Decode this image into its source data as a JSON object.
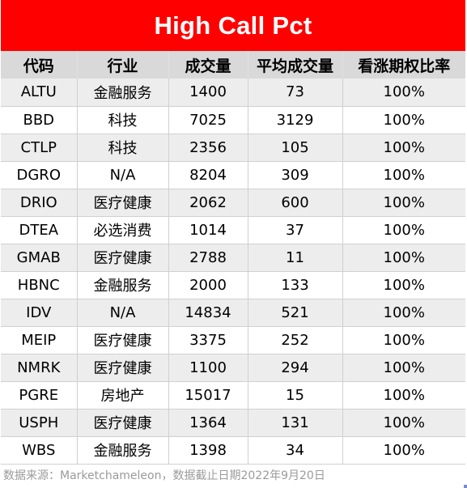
{
  "title": "High Call Pct",
  "headers": [
    "代码",
    "行业",
    "成交量",
    "平均成交量",
    "看涨期权比率"
  ],
  "rows": [
    [
      "ALTU",
      "金融服务",
      "1400",
      "73",
      "100%"
    ],
    [
      "BBD",
      "科技",
      "7025",
      "3129",
      "100%"
    ],
    [
      "CTLP",
      "科技",
      "2356",
      "105",
      "100%"
    ],
    [
      "DGRO",
      "N/A",
      "8204",
      "309",
      "100%"
    ],
    [
      "DRIO",
      "医疗健康",
      "2062",
      "600",
      "100%"
    ],
    [
      "DTEA",
      "必选消费",
      "1014",
      "37",
      "100%"
    ],
    [
      "GMAB",
      "医疗健康",
      "2788",
      "11",
      "100%"
    ],
    [
      "HBNC",
      "金融服务",
      "2000",
      "133",
      "100%"
    ],
    [
      "IDV",
      "N/A",
      "14834",
      "521",
      "100%"
    ],
    [
      "MEIP",
      "医疗健康",
      "3375",
      "252",
      "100%"
    ],
    [
      "NMRK",
      "医疗健康",
      "1100",
      "294",
      "100%"
    ],
    [
      "PGRE",
      "房地产",
      "15017",
      "15",
      "100%"
    ],
    [
      "USPH",
      "医疗健康",
      "1364",
      "131",
      "100%"
    ],
    [
      "WBS",
      "金融服务",
      "1398",
      "34",
      "100%"
    ]
  ],
  "footer": "数据来源：Marketchameleon，数据截止日期2022年9月20日",
  "colors": {
    "title_bg": "#ff0000",
    "title_text": "#ffffff",
    "header_bg": "#d9d9d9",
    "row_alt_bg": "#ededed",
    "footer_text": "#9a9a9a"
  }
}
